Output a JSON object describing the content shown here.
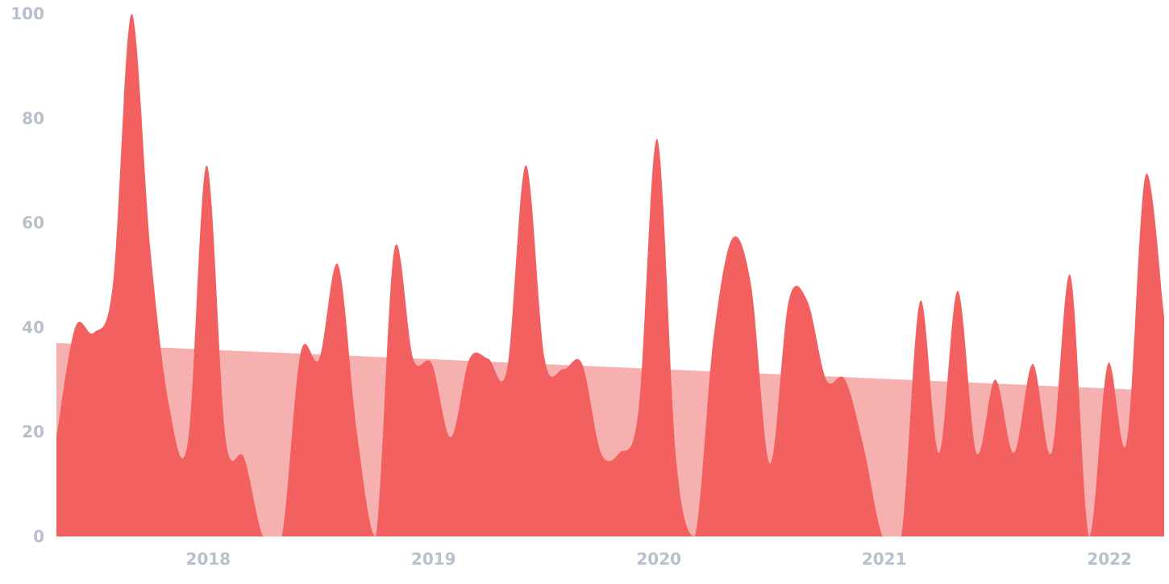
{
  "chart_data": {
    "type": "area",
    "title": "",
    "xlabel": "",
    "ylabel": "",
    "ylim": [
      0,
      100
    ],
    "xlim": [
      "2017-05",
      "2022-04"
    ],
    "x_tick_labels": [
      "2018",
      "2019",
      "2020",
      "2021",
      "2022"
    ],
    "y_tick_labels": [
      "0",
      "20",
      "40",
      "60",
      "80",
      "100"
    ],
    "grid": false,
    "legend": "none",
    "colors": {
      "series": "#f26060",
      "trend": "#f7b0b0",
      "tick_text": "#b8c0cc"
    },
    "series": [
      {
        "kind": "area",
        "x": [
          "2017-05",
          "2017-06",
          "2017-07",
          "2017-08",
          "2017-09",
          "2017-10",
          "2017-11",
          "2017-12",
          "2018-01",
          "2018-02",
          "2018-03",
          "2018-04",
          "2018-05",
          "2018-06",
          "2018-07",
          "2018-08",
          "2018-09",
          "2018-10",
          "2018-11",
          "2018-12",
          "2019-01",
          "2019-02",
          "2019-03",
          "2019-04",
          "2019-05",
          "2019-06",
          "2019-07",
          "2019-08",
          "2019-09",
          "2019-10",
          "2019-11",
          "2019-12",
          "2020-01",
          "2020-02",
          "2020-03",
          "2020-04",
          "2020-05",
          "2020-06",
          "2020-07",
          "2020-08",
          "2020-09",
          "2020-10",
          "2020-11",
          "2020-12",
          "2021-01",
          "2021-02",
          "2021-03",
          "2021-04",
          "2021-05",
          "2021-06",
          "2021-07",
          "2021-08",
          "2021-09",
          "2021-10",
          "2021-11",
          "2021-12",
          "2022-01",
          "2022-02",
          "2022-03",
          "2022-04"
        ],
        "values": [
          19,
          40,
          39,
          48,
          100,
          55,
          25,
          18,
          71,
          19,
          15,
          0,
          0,
          35,
          34,
          52,
          20,
          0,
          55,
          34,
          33,
          19,
          34,
          34,
          32,
          71,
          34,
          32,
          33,
          16,
          16,
          24,
          76,
          15,
          0,
          38,
          57,
          48,
          14,
          45,
          45,
          30,
          30,
          17,
          0,
          0,
          45,
          16,
          47,
          16,
          30,
          16,
          33,
          16,
          50,
          0,
          33,
          18,
          69,
          42
        ]
      },
      {
        "kind": "trend",
        "x": [
          "2017-05",
          "2022-03"
        ],
        "values": [
          37,
          28
        ]
      }
    ]
  }
}
